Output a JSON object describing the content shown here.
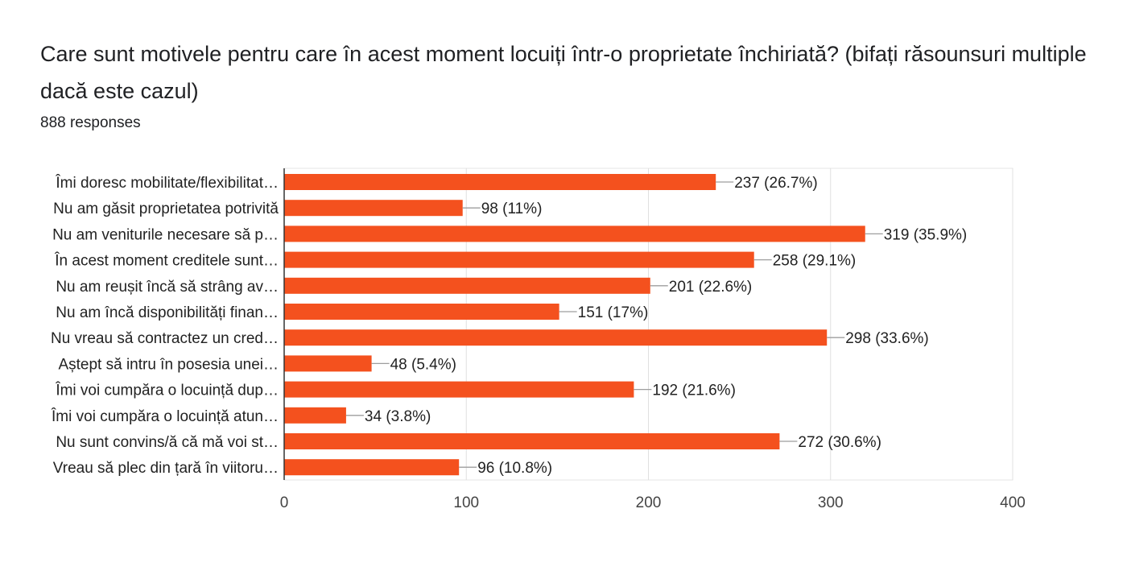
{
  "chart_data": {
    "type": "bar",
    "orientation": "horizontal",
    "title": "Care sunt motivele pentru care în acest moment locuiți într-o proprietate închiriată? (bifați răsounsuri multiple dacă este cazul)",
    "subtitle": "888 responses",
    "categories": [
      "Îmi doresc mobilitate/flexibilitat…",
      "Nu am găsit proprietatea potrivită",
      "Nu am veniturile necesare să p…",
      "În acest moment creditele sunt…",
      "Nu am reușit încă să strâng av…",
      "Nu am încă disponibilități finan…",
      "Nu vreau să contractez un cred…",
      "Aștept să intru în posesia unei…",
      "Îmi voi cumpăra o locuință dup…",
      "Îmi voi cumpăra o locuință atun…",
      "Nu sunt convins/ă că mă voi st…",
      "Vreau să plec din țară în viitoru…"
    ],
    "values": [
      237,
      98,
      319,
      258,
      201,
      151,
      298,
      48,
      192,
      34,
      272,
      96
    ],
    "data_labels": [
      "237 (26.7%)",
      "98 (11%)",
      "319 (35.9%)",
      "258 (29.1%)",
      "201 (22.6%)",
      "151 (17%)",
      "298 (33.6%)",
      "48 (5.4%)",
      "192 (21.6%)",
      "34 (3.8%)",
      "272 (30.6%)",
      "96 (10.8%)"
    ],
    "xlim": [
      0,
      400
    ],
    "xticks": [
      "0",
      "100",
      "200",
      "300",
      "400"
    ],
    "xlabel": "",
    "ylabel": "",
    "grid": true,
    "bar_color": "#f4511e"
  }
}
